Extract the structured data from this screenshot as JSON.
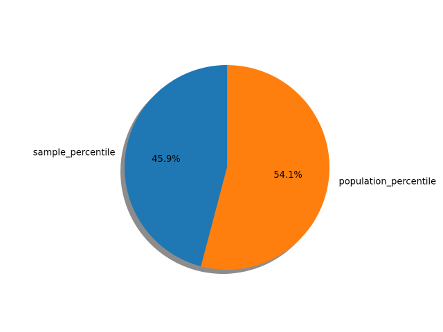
{
  "chart_data": {
    "type": "pie",
    "slices": [
      {
        "label": "sample_percentile",
        "value": 45.9,
        "pct_label": "45.9%",
        "color": "#1f77b4"
      },
      {
        "label": "population_percentile",
        "value": 54.1,
        "pct_label": "54.1%",
        "color": "#ff7f0e"
      }
    ],
    "start_angle_deg": 90,
    "direction": "counterclockwise",
    "shadow": true
  }
}
